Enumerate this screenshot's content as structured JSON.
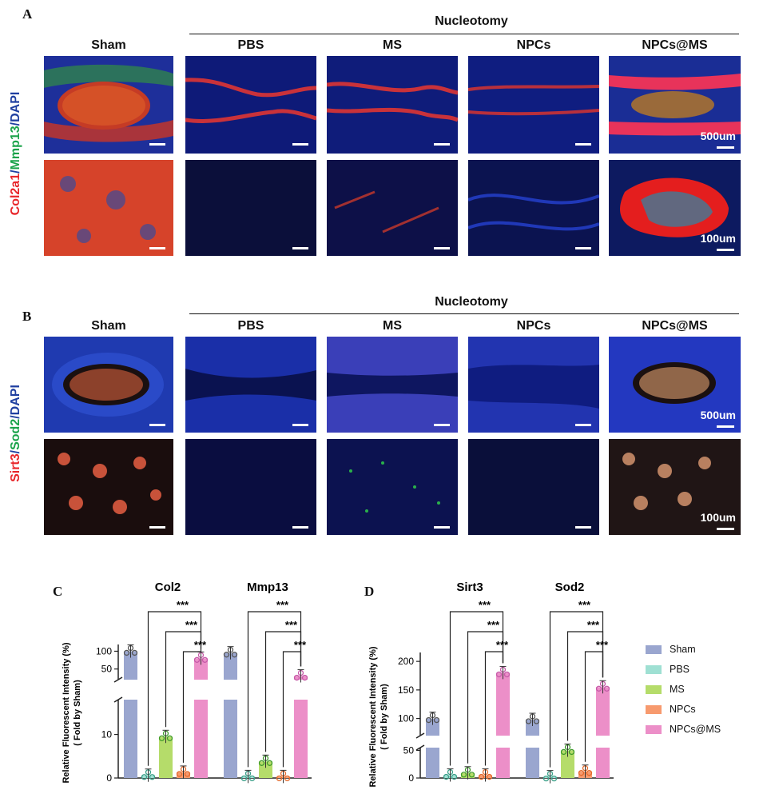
{
  "panel_labels": {
    "a": "A",
    "b": "B",
    "c": "C",
    "d": "D"
  },
  "panelA": {
    "group_header": "Nucleotomy",
    "column_headers": [
      "Sham",
      "PBS",
      "MS",
      "NPCs",
      "NPCs@MS"
    ],
    "stain_parts": [
      {
        "text": "Col2a1",
        "color": "#e8262a"
      },
      {
        "text": "/",
        "color": "#1f3fa0"
      },
      {
        "text": "Mmp13",
        "color": "#1aa34a"
      },
      {
        "text": "/DAPI",
        "color": "#1f3fa0"
      }
    ],
    "scale_labels": {
      "top": "500um",
      "bottom": "100um"
    }
  },
  "panelB": {
    "group_header": "Nucleotomy",
    "column_headers": [
      "Sham",
      "PBS",
      "MS",
      "NPCs",
      "NPCs@MS"
    ],
    "stain_parts": [
      {
        "text": "Sirt3",
        "color": "#e8262a"
      },
      {
        "text": "/",
        "color": "#1f3fa0"
      },
      {
        "text": "Sod2",
        "color": "#1aa34a"
      },
      {
        "text": "/DAPI",
        "color": "#1f3fa0"
      }
    ],
    "scale_labels": {
      "top": "500um",
      "bottom": "100um"
    }
  },
  "legend": [
    {
      "name": "Sham",
      "color": "#9aa6cf"
    },
    {
      "name": "PBS",
      "color": "#9fe0d3"
    },
    {
      "name": "MS",
      "color": "#b5dc6a"
    },
    {
      "name": "NPCs",
      "color": "#f79a6e"
    },
    {
      "name": "NPCs@MS",
      "color": "#ec8fc8"
    }
  ],
  "chart_data": [
    {
      "type": "bar",
      "panel": "C",
      "ylabel": "Relative Fluorescent Intensity (%)",
      "ylabel2": "( Fold by Sham)",
      "categories": [
        "Col2",
        "Mmp13"
      ],
      "broken_axis": true,
      "ylim_lower": [
        0,
        18
      ],
      "ylim_upper": [
        20,
        110
      ],
      "yticks_lower": [
        0,
        10
      ],
      "yticks_upper": [
        50,
        100
      ],
      "significance": "***",
      "series": [
        {
          "name": "Sham",
          "values": [
            100,
            95
          ]
        },
        {
          "name": "PBS",
          "values": [
            0.6,
            0.3
          ]
        },
        {
          "name": "MS",
          "values": [
            9.5,
            3.8
          ]
        },
        {
          "name": "NPCs",
          "values": [
            1.3,
            0.3
          ]
        },
        {
          "name": "NPCs@MS",
          "values": [
            80,
            30
          ]
        }
      ]
    },
    {
      "type": "bar",
      "panel": "D",
      "ylabel": "Relative Fluorescent Intensity (%)",
      "ylabel2": "( Fold by Sham)",
      "categories": [
        "Sirt3",
        "Sod2"
      ],
      "broken_axis": true,
      "ylim_lower": [
        0,
        55
      ],
      "ylim_upper": [
        70,
        210
      ],
      "yticks_lower": [
        0,
        50
      ],
      "yticks_upper": [
        100,
        150,
        200
      ],
      "significance": "***",
      "series": [
        {
          "name": "Sham",
          "values": [
            100,
            98
          ]
        },
        {
          "name": "PBS",
          "values": [
            5,
            2
          ]
        },
        {
          "name": "MS",
          "values": [
            9,
            50
          ]
        },
        {
          "name": "NPCs",
          "values": [
            5,
            12
          ]
        },
        {
          "name": "NPCs@MS",
          "values": [
            180,
            155
          ]
        }
      ]
    }
  ]
}
